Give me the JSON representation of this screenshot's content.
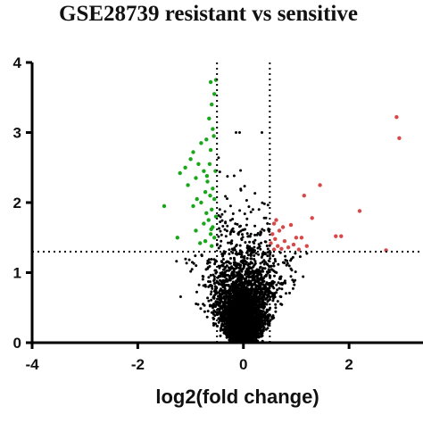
{
  "chart_data": {
    "type": "scatter",
    "title": "GSE28739 resistant vs sensitive",
    "xlabel": "log2(fold change)",
    "ylabel": "",
    "xlim": [
      -4,
      3.4
    ],
    "ylim": [
      0,
      4
    ],
    "x_ticks": [
      "-4",
      "-2",
      "0",
      "2"
    ],
    "y_ticks": [
      "0",
      "1",
      "2",
      "3",
      "4"
    ],
    "thresholds": {
      "log2fc": [
        -0.5,
        0.5
      ],
      "neg_log10_p": 1.3
    },
    "grid": false,
    "legend": "none",
    "colors": {
      "down": "#1aa61a",
      "up": "#d94848",
      "ns": "#000000",
      "threshold_line": "#000000"
    },
    "series": [
      {
        "category": "down",
        "points": [
          [
            -0.52,
            3.75
          ],
          [
            -0.62,
            3.72
          ],
          [
            -0.55,
            3.55
          ],
          [
            -0.6,
            3.4
          ],
          [
            -0.65,
            3.2
          ],
          [
            -0.58,
            3.05
          ],
          [
            -0.7,
            2.9
          ],
          [
            -0.8,
            2.85
          ],
          [
            -0.62,
            2.75
          ],
          [
            -0.95,
            2.72
          ],
          [
            -1.0,
            2.62
          ],
          [
            -0.85,
            2.55
          ],
          [
            -1.1,
            2.5
          ],
          [
            -0.75,
            2.45
          ],
          [
            -1.2,
            2.42
          ],
          [
            -0.9,
            2.35
          ],
          [
            -0.68,
            2.3
          ],
          [
            -1.05,
            2.25
          ],
          [
            -0.58,
            2.2
          ],
          [
            -0.72,
            2.15
          ],
          [
            -0.63,
            2.1
          ],
          [
            -0.55,
            2.05
          ],
          [
            -0.8,
            2.0
          ],
          [
            -0.95,
            1.95
          ],
          [
            -0.6,
            1.9
          ],
          [
            -0.7,
            1.85
          ],
          [
            -0.52,
            1.8
          ],
          [
            -0.66,
            1.75
          ],
          [
            -0.75,
            1.7
          ],
          [
            -0.58,
            1.65
          ],
          [
            -0.9,
            1.6
          ],
          [
            -0.62,
            1.55
          ],
          [
            -0.55,
            1.5
          ],
          [
            -0.72,
            1.45
          ],
          [
            -0.82,
            1.42
          ],
          [
            -0.6,
            1.38
          ],
          [
            -1.5,
            1.95
          ],
          [
            -1.25,
            1.5
          ],
          [
            -0.53,
            2.45
          ],
          [
            -0.64,
            2.55
          ],
          [
            -0.56,
            2.95
          ],
          [
            -0.88,
            2.05
          ],
          [
            -0.61,
            1.62
          ],
          [
            -0.69,
            2.38
          ]
        ]
      },
      {
        "category": "up",
        "points": [
          [
            2.9,
            3.22
          ],
          [
            2.95,
            2.92
          ],
          [
            1.45,
            2.25
          ],
          [
            1.15,
            2.1
          ],
          [
            2.2,
            1.88
          ],
          [
            1.3,
            1.78
          ],
          [
            0.62,
            1.75
          ],
          [
            0.58,
            1.7
          ],
          [
            0.9,
            1.68
          ],
          [
            0.75,
            1.65
          ],
          [
            0.68,
            1.6
          ],
          [
            0.55,
            1.55
          ],
          [
            1.75,
            1.52
          ],
          [
            1.85,
            1.52
          ],
          [
            1.0,
            1.5
          ],
          [
            1.1,
            1.5
          ],
          [
            0.6,
            1.48
          ],
          [
            0.78,
            1.45
          ],
          [
            0.52,
            1.42
          ],
          [
            0.95,
            1.4
          ],
          [
            0.65,
            1.38
          ],
          [
            1.2,
            1.38
          ],
          [
            0.85,
            1.36
          ],
          [
            0.72,
            1.34
          ],
          [
            2.7,
            1.32
          ],
          [
            0.58,
            1.33
          ],
          [
            1.05,
            1.33
          ]
        ]
      }
    ]
  }
}
